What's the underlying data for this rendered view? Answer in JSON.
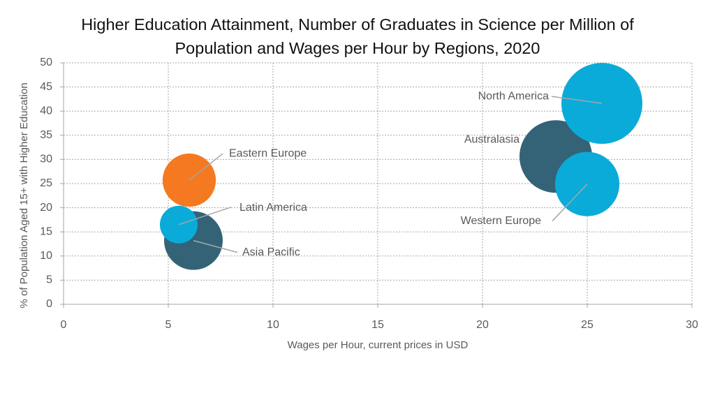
{
  "chart_data": {
    "type": "bubble",
    "title": "Higher Education Attainment, Number of Graduates in Science per Million of Population and Wages per Hour by Regions, 2020",
    "x_label": "Wages per Hour, current prices in USD",
    "y_label": "% of Population Aged 15+ with Higher Education",
    "points": [
      {
        "name": "Eastern Europe",
        "x": 6.0,
        "y": 25.7,
        "size": 1450,
        "color": "#f47920"
      },
      {
        "name": "Asia Pacific",
        "x": 6.2,
        "y": 13.2,
        "size": 1760,
        "color": "#346378"
      },
      {
        "name": "Latin America",
        "x": 5.5,
        "y": 16.5,
        "size": 730,
        "color": "#0aabd9"
      },
      {
        "name": "Australasia",
        "x": 23.5,
        "y": 30.6,
        "size": 2700,
        "color": "#346378"
      },
      {
        "name": "Western Europe",
        "x": 25.0,
        "y": 24.9,
        "size": 2120,
        "color": "#0aabd9"
      },
      {
        "name": "North America",
        "x": 25.7,
        "y": 41.6,
        "size": 3360,
        "color": "#0aabd9"
      }
    ],
    "xlim": [
      0,
      30
    ],
    "xticks": [
      0,
      5,
      10,
      15,
      20,
      25,
      30
    ],
    "ylim": [
      0,
      50
    ],
    "yticks": [
      0,
      5,
      10,
      15,
      20,
      25,
      30,
      35,
      40,
      45,
      50
    ],
    "grid": true
  }
}
